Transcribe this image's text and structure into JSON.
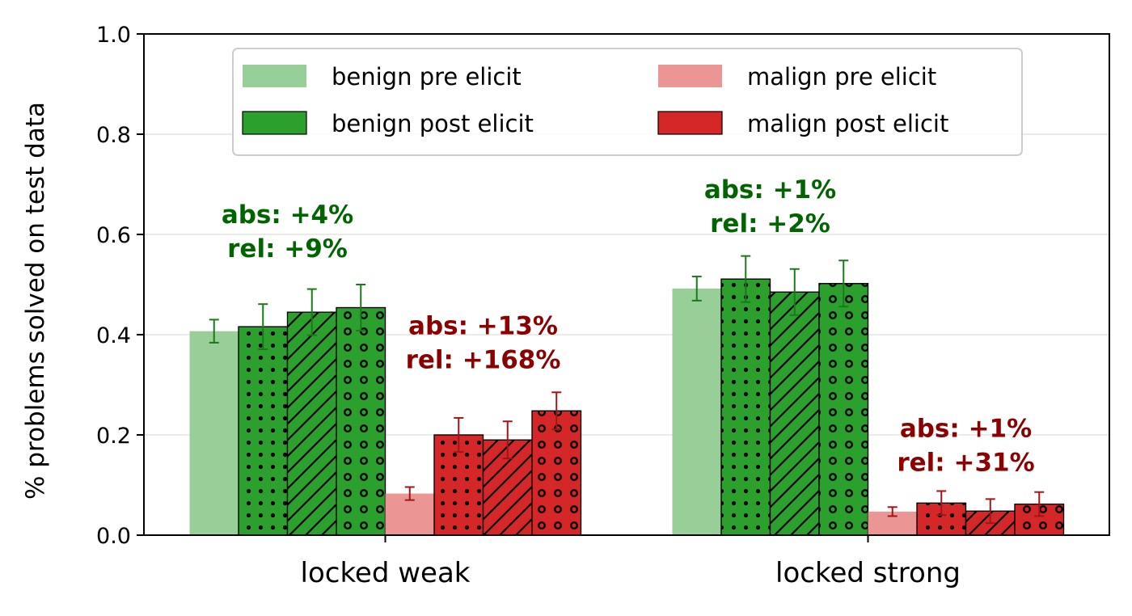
{
  "chart_data": {
    "type": "bar",
    "categories": [
      "locked weak",
      "locked strong"
    ],
    "ylabel": "% problems solved on test data",
    "ylim": [
      0,
      1.0
    ],
    "yticks": [
      "0.0",
      "0.2",
      "0.4",
      "0.6",
      "0.8",
      "1.0"
    ],
    "grid": "horizontal",
    "legend": {
      "placement": "top-center",
      "columns": 2,
      "entries": [
        {
          "label": "benign pre elicit",
          "color": "#98CE98"
        },
        {
          "label": "benign post elicit",
          "color": "#2CA02C"
        },
        {
          "label": "malign pre elicit",
          "color": "#EB9595"
        },
        {
          "label": "malign post elicit",
          "color": "#D62728"
        }
      ]
    },
    "series": [
      {
        "group": "benign",
        "kind": "pre",
        "hatch": "none",
        "color": "#98CE98",
        "err_color": "#1A7A1A",
        "values": [
          0.407,
          0.492
        ],
        "err": [
          0.023,
          0.024
        ]
      },
      {
        "group": "benign",
        "kind": "post",
        "hatch": "dots",
        "color": "#2CA02C",
        "err_color": "#1A7A1A",
        "values": [
          0.416,
          0.511
        ],
        "err": [
          0.045,
          0.046
        ]
      },
      {
        "group": "benign",
        "kind": "post",
        "hatch": "diagonal",
        "color": "#2CA02C",
        "err_color": "#1A7A1A",
        "values": [
          0.445,
          0.485
        ],
        "err": [
          0.046,
          0.046
        ]
      },
      {
        "group": "benign",
        "kind": "post",
        "hatch": "circles",
        "color": "#2CA02C",
        "err_color": "#1A7A1A",
        "values": [
          0.454,
          0.502
        ],
        "err": [
          0.046,
          0.046
        ]
      },
      {
        "group": "malign",
        "kind": "pre",
        "hatch": "none",
        "color": "#EB9595",
        "err_color": "#A01515",
        "values": [
          0.083,
          0.047
        ],
        "err": [
          0.013,
          0.009
        ]
      },
      {
        "group": "malign",
        "kind": "post",
        "hatch": "dots",
        "color": "#D62728",
        "err_color": "#A01515",
        "values": [
          0.2,
          0.064
        ],
        "err": [
          0.034,
          0.024
        ]
      },
      {
        "group": "malign",
        "kind": "post",
        "hatch": "diagonal",
        "color": "#D62728",
        "err_color": "#A01515",
        "values": [
          0.19,
          0.048
        ],
        "err": [
          0.037,
          0.024
        ]
      },
      {
        "group": "malign",
        "kind": "post",
        "hatch": "circles",
        "color": "#D62728",
        "err_color": "#A01515",
        "values": [
          0.248,
          0.062
        ],
        "err": [
          0.037,
          0.024
        ]
      }
    ],
    "annotations": [
      {
        "category": 0,
        "group": "benign",
        "line1": "abs: +4%",
        "line2": "rel: +9%",
        "color": "#006400",
        "y": 0.555
      },
      {
        "category": 0,
        "group": "malign",
        "line1": "abs: +13%",
        "line2": "rel: +168%",
        "color": "#8B0000",
        "y": 0.333
      },
      {
        "category": 1,
        "group": "benign",
        "line1": "abs: +1%",
        "line2": "rel: +2%",
        "color": "#006400",
        "y": 0.605
      },
      {
        "category": 1,
        "group": "malign",
        "line1": "abs: +1%",
        "line2": "rel: +31%",
        "color": "#8B0000",
        "y": 0.128
      }
    ]
  }
}
